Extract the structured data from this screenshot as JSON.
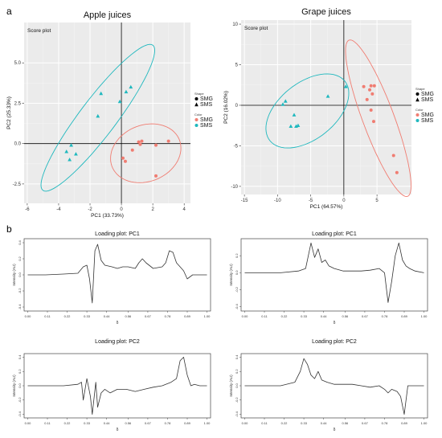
{
  "panel_labels": {
    "a": "a",
    "b": "b"
  },
  "chart_data": [
    {
      "type": "scatter",
      "title": "Apple juices",
      "subtitle": "Score plot",
      "xlabel": "PC1 (33.73%)",
      "ylabel": "PC2 (25.33%)",
      "xlim": [
        -6.2,
        4.4
      ],
      "ylim": [
        -3.7,
        7.5
      ],
      "x_ticks": [
        -6,
        -4,
        -2,
        0,
        2,
        4
      ],
      "y_ticks": [
        -2.5,
        0.0,
        2.5,
        5.0
      ],
      "y_tick_labels": [
        "-2.5",
        "0.0",
        "2.5",
        "5.0"
      ],
      "grid": true,
      "legend": {
        "placement": "right",
        "shape_title": "Shape",
        "shape_entries": [
          "SMG",
          "SMS"
        ],
        "color_title": "Color",
        "color_entries": [
          "SMG",
          "SMS"
        ]
      },
      "colors": {
        "SMG": "#f07d72",
        "SMS": "#1fb8be"
      },
      "series": [
        {
          "name": "SMG",
          "shape": "circle",
          "points": [
            [
              1.1,
              0.1
            ],
            [
              1.3,
              0.15
            ],
            [
              1.2,
              -0.05
            ],
            [
              3.0,
              0.15
            ],
            [
              2.2,
              -0.1
            ],
            [
              0.7,
              -0.4
            ],
            [
              0.1,
              -0.9
            ],
            [
              0.25,
              -1.1
            ],
            [
              2.2,
              -2.0
            ]
          ]
        },
        {
          "name": "SMS",
          "shape": "triangle",
          "points": [
            [
              -1.3,
              3.1
            ],
            [
              0.6,
              3.5
            ],
            [
              0.3,
              3.2
            ],
            [
              -0.1,
              2.6
            ],
            [
              -1.5,
              1.7
            ],
            [
              -3.2,
              -0.1
            ],
            [
              -3.5,
              -0.5
            ],
            [
              -2.9,
              -0.65
            ],
            [
              -3.3,
              -1.0
            ]
          ]
        }
      ],
      "ellipses": [
        {
          "name": "SMG",
          "cx": 1.55,
          "cy": -0.6,
          "rx": 2.3,
          "ry": 1.75,
          "angle": 20
        },
        {
          "name": "SMS",
          "cx": -1.5,
          "cy": 1.6,
          "rx": 5.7,
          "ry": 1.15,
          "angle": 52
        }
      ]
    },
    {
      "type": "scatter",
      "title": "Grape juices",
      "subtitle": "Score plot",
      "xlabel": "PC1 (64.57%)",
      "ylabel": "PC2 (16.02%)",
      "xlim": [
        -15.5,
        10.2
      ],
      "ylim": [
        -11.0,
        10.5
      ],
      "x_ticks": [
        -15,
        -10,
        -5,
        0,
        5
      ],
      "y_ticks": [
        -10,
        -5,
        0,
        5,
        10
      ],
      "grid": true,
      "legend": {
        "placement": "right",
        "shape_title": "Shape",
        "shape_entries": [
          "SMG",
          "SMS"
        ],
        "color_title": "Color",
        "color_entries": [
          "SMG",
          "SMS"
        ]
      },
      "colors": {
        "SMG": "#f07d72",
        "SMS": "#1fb8be"
      },
      "series": [
        {
          "name": "SMG",
          "shape": "circle",
          "points": [
            [
              3.0,
              2.3
            ],
            [
              4.1,
              2.4
            ],
            [
              4.6,
              2.4
            ],
            [
              3.9,
              1.9
            ],
            [
              4.3,
              1.4
            ],
            [
              3.5,
              0.7
            ],
            [
              4.1,
              -0.6
            ],
            [
              4.5,
              -2.0
            ],
            [
              7.5,
              -6.2
            ],
            [
              8.0,
              -8.3
            ]
          ]
        },
        {
          "name": "SMS",
          "shape": "triangle",
          "points": [
            [
              -9.2,
              0.1
            ],
            [
              -8.8,
              0.5
            ],
            [
              -7.5,
              -1.2
            ],
            [
              -8.0,
              -2.6
            ],
            [
              -7.2,
              -2.6
            ],
            [
              -6.9,
              -2.5
            ],
            [
              -2.4,
              1.1
            ],
            [
              0.3,
              2.3
            ]
          ]
        }
      ],
      "ellipses": [
        {
          "name": "SMG",
          "cx": 5.2,
          "cy": -1.6,
          "rx": 10.6,
          "ry": 2.3,
          "angle": -65
        },
        {
          "name": "SMS",
          "cx": -5.5,
          "cy": -0.7,
          "rx": 6.8,
          "ry": 3.7,
          "angle": 28
        }
      ]
    },
    {
      "type": "line",
      "title": "Loading plot: PC1",
      "xlabel": "δ",
      "ylabel": "Intensity (AU)",
      "xlim": [
        -0.02,
        1.02
      ],
      "ylim": [
        -0.45,
        0.45
      ],
      "x_ticks": [
        0.0,
        0.11,
        0.22,
        0.33,
        0.44,
        0.56,
        0.67,
        0.78,
        0.89,
        1.0
      ],
      "x_tick_labels": [
        "0.00",
        "0.11",
        "0.22",
        "0.33",
        "0.44",
        "0.56",
        "0.67",
        "0.78",
        "0.89",
        "1.00"
      ],
      "y_ticks": [
        -0.4,
        -0.2,
        0.0,
        0.2,
        0.4
      ],
      "y_tick_labels": [
        "-0.4",
        "-0.2",
        "0.0",
        "0.2",
        "0.4"
      ],
      "grid": false,
      "x": [
        0.0,
        0.1,
        0.2,
        0.28,
        0.31,
        0.33,
        0.345,
        0.36,
        0.375,
        0.39,
        0.41,
        0.43,
        0.47,
        0.5,
        0.53,
        0.56,
        0.6,
        0.62,
        0.64,
        0.66,
        0.7,
        0.75,
        0.77,
        0.79,
        0.81,
        0.83,
        0.85,
        0.87,
        0.89,
        0.92,
        0.96,
        1.0
      ],
      "y": [
        0.0,
        0.0,
        0.01,
        0.02,
        0.1,
        0.12,
        -0.05,
        -0.35,
        0.3,
        0.38,
        0.18,
        0.12,
        0.1,
        0.08,
        0.1,
        0.1,
        0.08,
        0.15,
        0.2,
        0.15,
        0.08,
        0.1,
        0.15,
        0.3,
        0.28,
        0.15,
        0.1,
        0.05,
        -0.05,
        0.0,
        0.0,
        0.0
      ]
    },
    {
      "type": "line",
      "title": "Loading plot: PC1",
      "xlabel": "δ",
      "ylabel": "Intensity (AU)",
      "xlim": [
        -0.02,
        1.02
      ],
      "ylim": [
        -0.45,
        0.4
      ],
      "x_ticks": [
        0.0,
        0.11,
        0.22,
        0.33,
        0.44,
        0.56,
        0.67,
        0.78,
        0.89,
        1.0
      ],
      "x_tick_labels": [
        "0.00",
        "0.11",
        "0.22",
        "0.33",
        "0.44",
        "0.56",
        "0.67",
        "0.78",
        "0.89",
        "1.00"
      ],
      "y_ticks": [
        -0.4,
        -0.2,
        0.0,
        0.2
      ],
      "y_tick_labels": [
        "-0.4",
        "-0.2",
        "0.0",
        "0.2"
      ],
      "grid": false,
      "x": [
        0.0,
        0.1,
        0.2,
        0.3,
        0.34,
        0.37,
        0.39,
        0.41,
        0.43,
        0.45,
        0.47,
        0.5,
        0.55,
        0.6,
        0.65,
        0.7,
        0.75,
        0.78,
        0.8,
        0.82,
        0.84,
        0.86,
        0.88,
        0.9,
        0.92,
        0.95,
        1.0
      ],
      "y": [
        0.0,
        0.0,
        0.0,
        0.02,
        0.05,
        0.35,
        0.18,
        0.28,
        0.12,
        0.15,
        0.08,
        0.05,
        0.02,
        0.02,
        0.02,
        0.03,
        0.05,
        0.0,
        -0.35,
        -0.1,
        0.2,
        0.35,
        0.15,
        0.08,
        0.05,
        0.02,
        0.0
      ]
    },
    {
      "type": "line",
      "title": "Loading plot: PC2",
      "xlabel": "δ",
      "ylabel": "Intensity (AU)",
      "xlim": [
        -0.02,
        1.02
      ],
      "ylim": [
        -0.45,
        0.45
      ],
      "x_ticks": [
        0.0,
        0.11,
        0.22,
        0.33,
        0.44,
        0.56,
        0.67,
        0.78,
        0.89,
        1.0
      ],
      "x_tick_labels": [
        "0.00",
        "0.11",
        "0.22",
        "0.33",
        "0.44",
        "0.56",
        "0.67",
        "0.78",
        "0.89",
        "1.00"
      ],
      "y_ticks": [
        -0.4,
        -0.2,
        0.0,
        0.2,
        0.4
      ],
      "y_tick_labels": [
        "-0.4",
        "-0.2",
        "0.0",
        "0.2",
        "0.4"
      ],
      "grid": false,
      "x": [
        0.0,
        0.1,
        0.2,
        0.28,
        0.3,
        0.31,
        0.33,
        0.35,
        0.36,
        0.38,
        0.39,
        0.41,
        0.43,
        0.46,
        0.5,
        0.55,
        0.6,
        0.65,
        0.7,
        0.75,
        0.8,
        0.83,
        0.85,
        0.87,
        0.89,
        0.91,
        0.93,
        0.96,
        1.0
      ],
      "y": [
        0.0,
        0.0,
        0.0,
        0.02,
        0.05,
        -0.2,
        0.1,
        -0.15,
        -0.4,
        0.05,
        -0.3,
        -0.1,
        -0.05,
        -0.1,
        -0.05,
        -0.05,
        -0.08,
        -0.05,
        -0.02,
        0.0,
        0.05,
        0.1,
        0.35,
        0.4,
        0.15,
        0.0,
        0.02,
        0.0,
        0.0
      ]
    },
    {
      "type": "line",
      "title": "Loading plot: PC2",
      "xlabel": "δ",
      "ylabel": "Intensity (AU)",
      "xlim": [
        -0.02,
        1.02
      ],
      "ylim": [
        -0.45,
        0.45
      ],
      "x_ticks": [
        0.0,
        0.11,
        0.22,
        0.33,
        0.44,
        0.56,
        0.67,
        0.78,
        0.89,
        1.0
      ],
      "x_tick_labels": [
        "0.00",
        "0.11",
        "0.22",
        "0.33",
        "0.44",
        "0.56",
        "0.67",
        "0.78",
        "0.89",
        "1.00"
      ],
      "y_ticks": [
        -0.4,
        -0.2,
        0.0,
        0.2,
        0.4
      ],
      "y_tick_labels": [
        "-0.4",
        "-0.2",
        "0.0",
        "0.2",
        "0.4"
      ],
      "grid": false,
      "x": [
        0.0,
        0.1,
        0.2,
        0.28,
        0.31,
        0.33,
        0.35,
        0.37,
        0.39,
        0.41,
        0.43,
        0.46,
        0.5,
        0.55,
        0.6,
        0.65,
        0.7,
        0.75,
        0.78,
        0.8,
        0.82,
        0.85,
        0.87,
        0.89,
        0.91,
        0.94,
        1.0
      ],
      "y": [
        0.0,
        0.0,
        0.0,
        0.05,
        0.2,
        0.38,
        0.3,
        0.15,
        0.1,
        0.2,
        0.08,
        0.05,
        0.02,
        0.02,
        0.02,
        0.0,
        -0.02,
        0.0,
        -0.05,
        -0.1,
        -0.05,
        -0.08,
        -0.15,
        -0.4,
        0.0,
        0.0,
        0.0
      ]
    }
  ]
}
